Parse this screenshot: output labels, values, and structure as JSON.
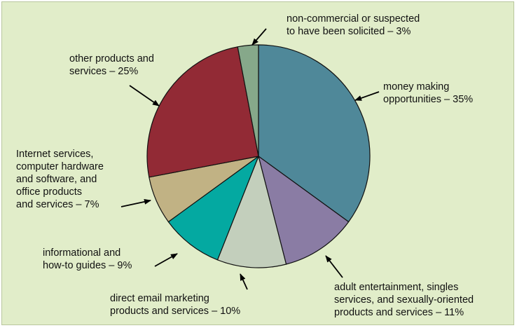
{
  "chart_data": {
    "type": "pie",
    "start_angle_deg": 0,
    "direction": "clockwise",
    "slices": [
      {
        "value": 35,
        "color": "#4f8899",
        "label_lines": [
          "money making",
          "opportunities – 35%"
        ]
      },
      {
        "value": 11,
        "color": "#8a7ca4",
        "label_lines": [
          "adult entertainment, singles",
          "services, and sexually-oriented",
          "products and services – 11%"
        ]
      },
      {
        "value": 10,
        "color": "#c3cfbc",
        "label_lines": [
          "direct email marketing",
          "products and services – 10%"
        ]
      },
      {
        "value": 9,
        "color": "#04a9a1",
        "label_lines": [
          "informational and",
          "how-to guides – 9%"
        ]
      },
      {
        "value": 7,
        "color": "#c1b284",
        "label_lines": [
          "Internet services,",
          "computer hardware",
          "and software, and",
          "office products",
          "and services – 7%"
        ]
      },
      {
        "value": 25,
        "color": "#922a35",
        "label_lines": [
          "other products and",
          "services – 25%"
        ]
      },
      {
        "value": 3,
        "color": "#86a88a",
        "label_lines": [
          "non-commercial or suspected",
          "to have been solicited – 3%"
        ]
      }
    ],
    "legend": "none",
    "labels": "outside with arrows"
  }
}
